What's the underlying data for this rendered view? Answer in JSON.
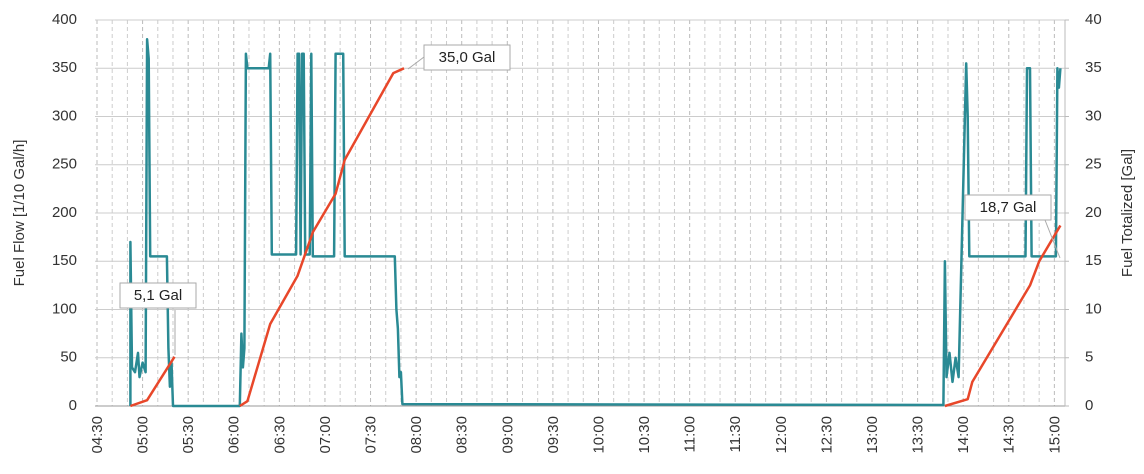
{
  "chart_data": {
    "type": "line",
    "y_label": "Fuel Flow [1/10 Gal/h]",
    "y2_label": "Fuel Totalized [Gal]",
    "xlim": [
      "04:30",
      "15:07"
    ],
    "xticks": [
      "04:30",
      "05:00",
      "05:30",
      "06:00",
      "06:30",
      "07:00",
      "07:30",
      "08:00",
      "08:30",
      "09:00",
      "09:30",
      "10:00",
      "10:30",
      "11:00",
      "11:30",
      "12:00",
      "12:30",
      "13:00",
      "13:30",
      "14:00",
      "14:30",
      "15:00"
    ],
    "ylim": [
      0,
      400
    ],
    "yticks": [
      0,
      50,
      100,
      150,
      200,
      250,
      300,
      350,
      400
    ],
    "y2lim": [
      0,
      40
    ],
    "y2ticks": [
      0,
      5,
      10,
      15,
      20,
      25,
      30,
      35,
      40
    ],
    "grid": true,
    "series": [
      {
        "color": "#2a8a94",
        "x": [
          "04:52",
          "04:52",
          "04:53",
          "04:55",
          "04:57",
          "04:58",
          "05:00",
          "05:02",
          "05:03",
          "05:04",
          "05:05",
          "05:16",
          "05:17",
          "05:18",
          "05:19",
          "05:20",
          "06:04",
          "06:05",
          "06:06",
          "06:07",
          "06:08",
          "06:09",
          "06:23",
          "06:24",
          "06:25",
          "06:41",
          "06:42",
          "06:43",
          "06:44",
          "06:45",
          "06:46",
          "06:47",
          "06:50",
          "06:51",
          "06:52",
          "07:06",
          "07:07",
          "07:12",
          "07:13",
          "07:46",
          "07:47",
          "07:48",
          "07:49",
          "07:50",
          "07:51",
          "13:47",
          "13:48",
          "13:49",
          "13:51",
          "13:53",
          "13:55",
          "13:57",
          "14:02",
          "14:03",
          "14:04",
          "14:41",
          "14:42",
          "14:44",
          "14:45",
          "15:01",
          "15:02",
          "15:03",
          "15:04"
        ],
        "values": [
          0,
          170,
          40,
          35,
          55,
          30,
          45,
          35,
          380,
          360,
          155,
          155,
          60,
          20,
          45,
          0,
          0,
          75,
          40,
          60,
          365,
          350,
          350,
          365,
          157,
          157,
          365,
          365,
          157,
          365,
          365,
          157,
          157,
          365,
          155,
          155,
          365,
          365,
          155,
          155,
          100,
          80,
          30,
          35,
          2,
          1,
          150,
          30,
          55,
          25,
          50,
          30,
          355,
          300,
          155,
          155,
          350,
          350,
          155,
          155,
          350,
          330,
          350
        ]
      },
      {
        "color": "#e8472a",
        "axis": "y2",
        "x": [
          "04:52",
          "05:03",
          "05:21",
          "05:40",
          "06:04",
          "06:09",
          "06:24",
          "06:42",
          "06:52",
          "07:07",
          "07:13",
          "07:45",
          "07:52",
          "10:00",
          "13:48",
          "14:03",
          "14:06",
          "14:44",
          "14:50",
          "15:04"
        ],
        "values": [
          0,
          0.6,
          5.1,
          null,
          0,
          0.5,
          8.5,
          13.5,
          18,
          22,
          25.5,
          34.5,
          35,
          null,
          0,
          0.7,
          2.5,
          12.5,
          15,
          18.7
        ]
      }
    ],
    "annotations": [
      "5,1 Gal",
      "35,0 Gal",
      "18,7 Gal"
    ]
  }
}
